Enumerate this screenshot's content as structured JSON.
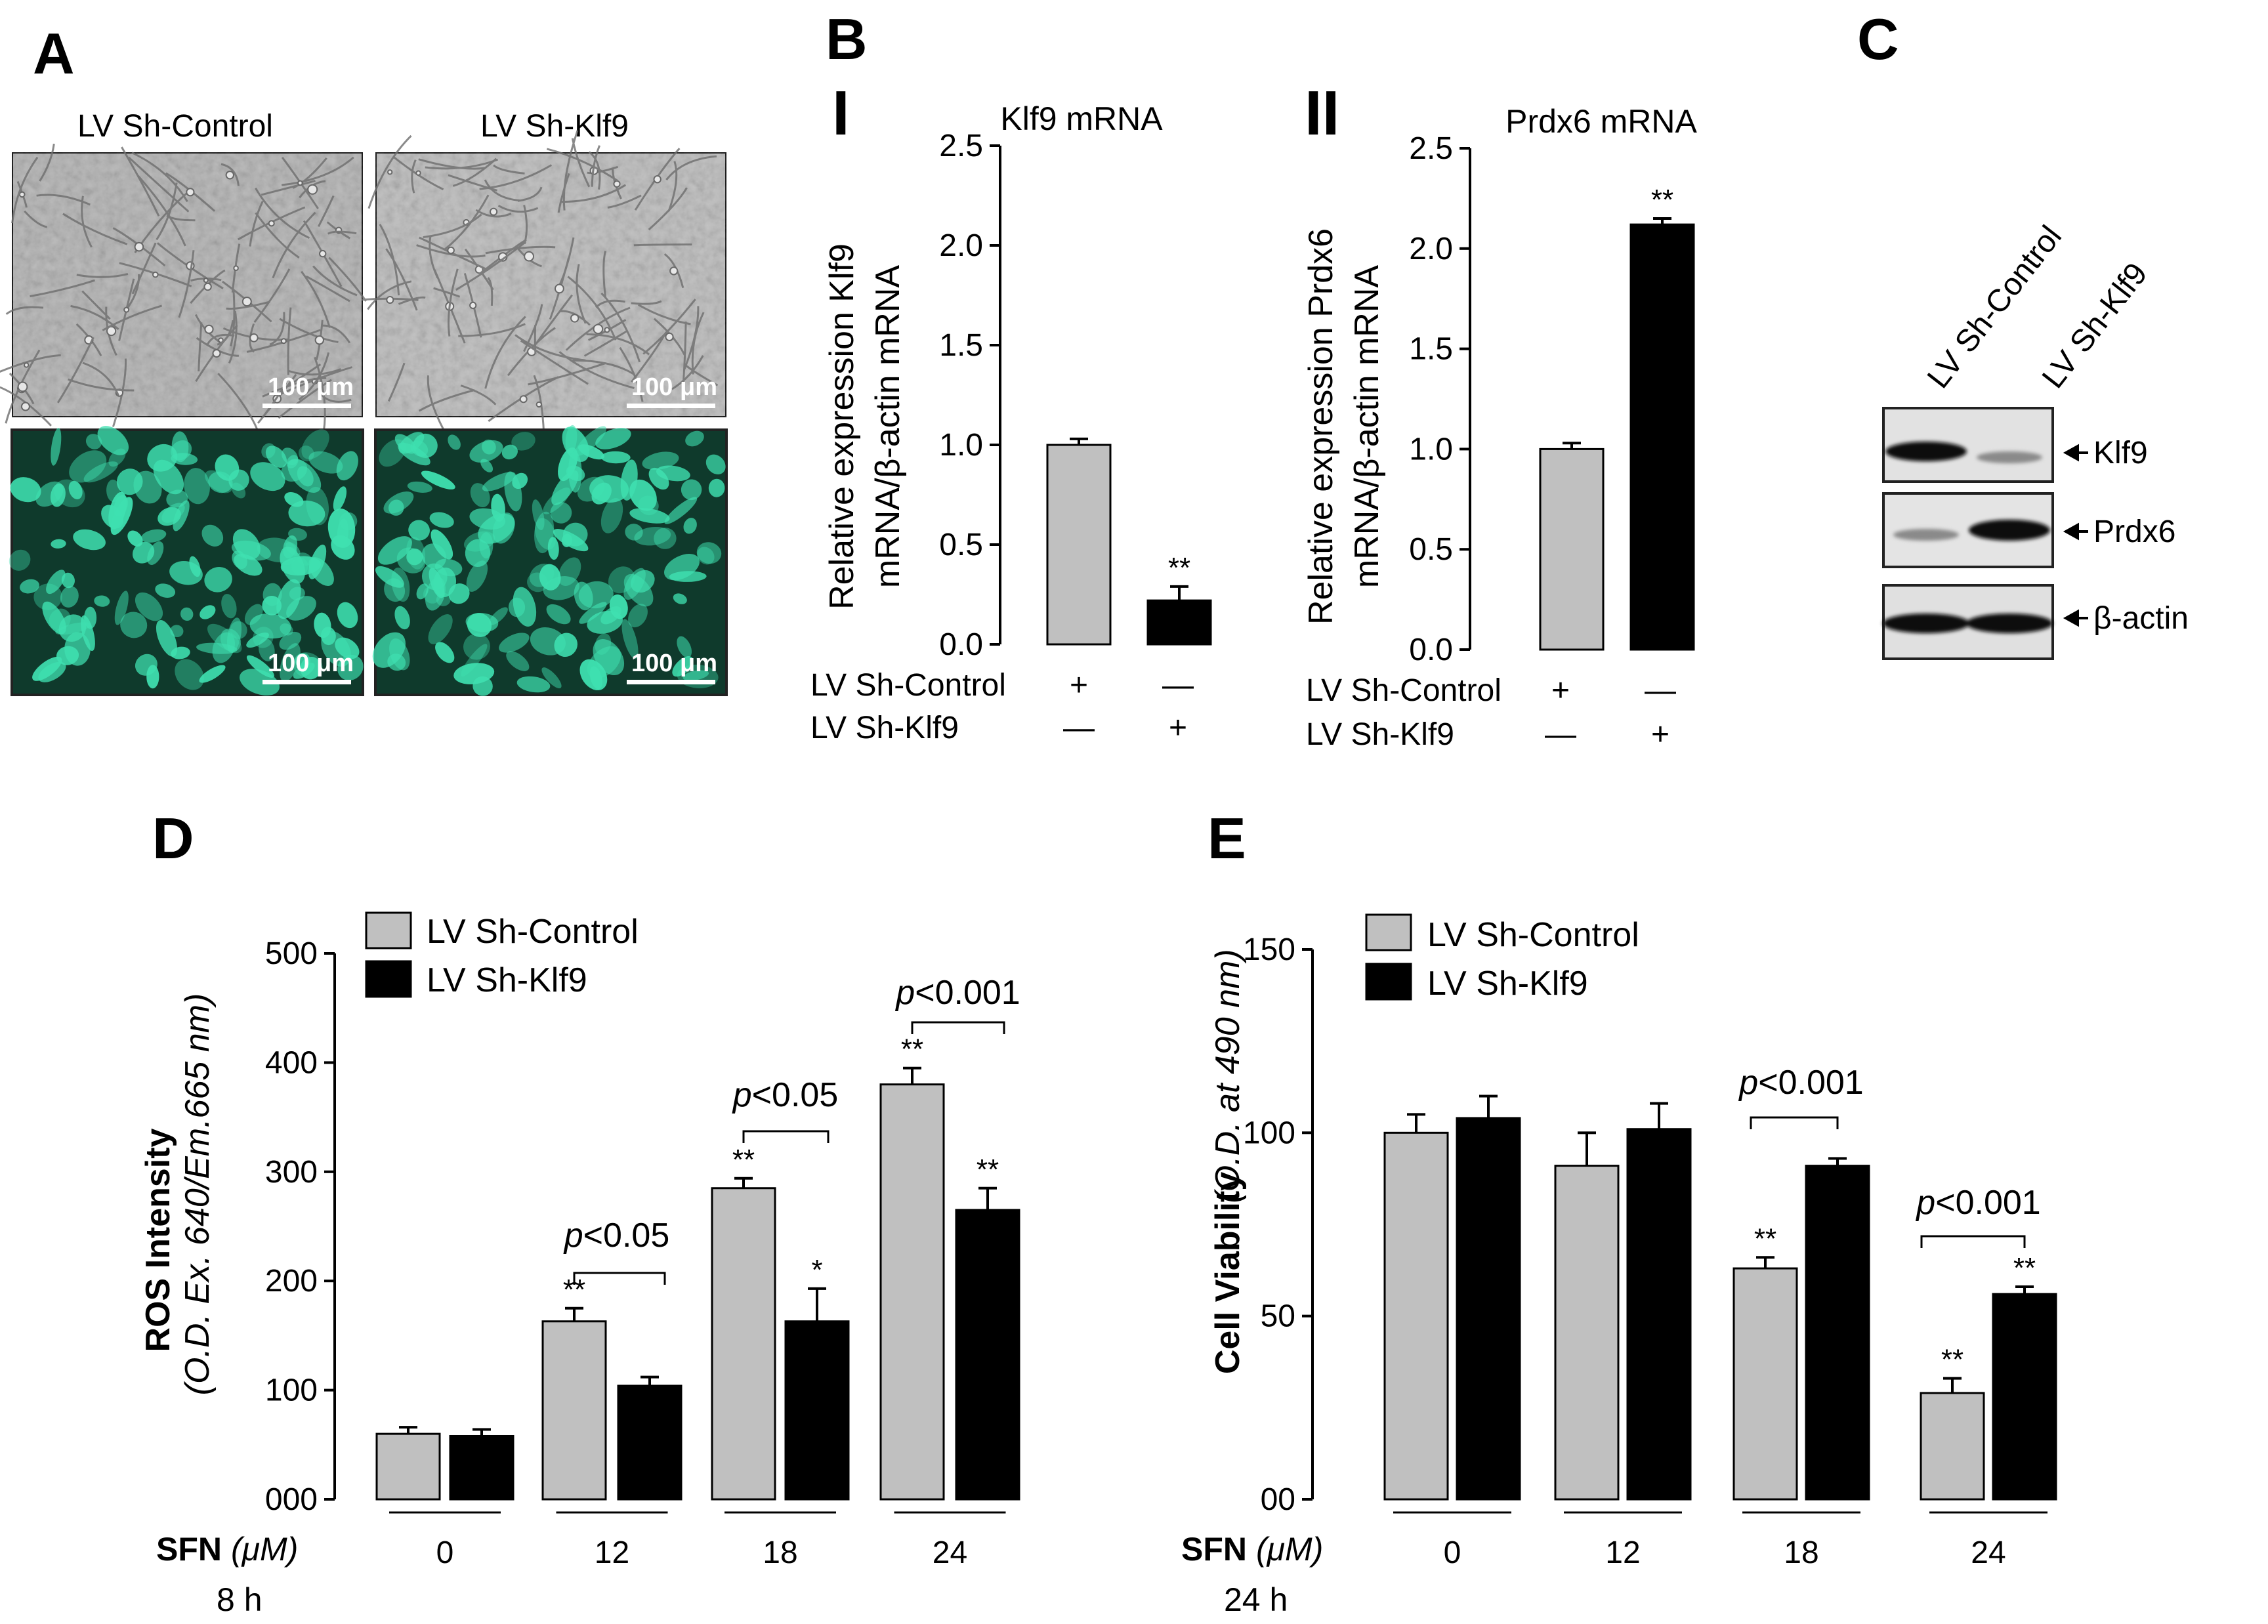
{
  "colors": {
    "control": "#c0c0c0",
    "klf9": "#000000",
    "phase_bg": "#bdbdbd",
    "fluor_bg": "#0f3a2c",
    "fluor_cell": "#3fe0b0"
  },
  "panel_labels": {
    "a": "A",
    "b": "B",
    "c": "C",
    "d": "D",
    "e": "E"
  },
  "panel_a": {
    "col1": "LV Sh-Control",
    "col2": "LV Sh-Klf9",
    "scale_label": "100 μm"
  },
  "panel_b": {
    "sub1": "I",
    "sub2": "II",
    "rows": [
      "LV Sh-Control",
      "LV Sh-Klf9"
    ],
    "signs": {
      "control": [
        "+",
        "—"
      ],
      "klf9": [
        "—",
        "+"
      ]
    }
  },
  "panel_c": {
    "lanes": [
      "LV Sh-Control",
      "LV Sh-Klf9"
    ],
    "bands": [
      "Klf9",
      "Prdx6",
      "β-actin"
    ]
  },
  "panel_d": {
    "sfn_bold": "SFN",
    "sfn_unit": "(μM)",
    "time": "8 h",
    "pvals": [
      "p<0.05",
      "p<0.05",
      "p<0.001"
    ]
  },
  "panel_e": {
    "sfn_bold": "SFN",
    "sfn_unit": "(μM)",
    "time": "24 h",
    "pvals": [
      "p<0.001",
      "p<0.001"
    ]
  },
  "chart_data": [
    {
      "type": "bar",
      "title": "Klf9 mRNA",
      "ylabel": "Relative expression Klf9 mRNA/β-actin mRNA",
      "ylim": [
        0,
        2.5
      ],
      "yticks": [
        "0.0",
        "0.5",
        "1.0",
        "1.5",
        "2.0",
        "2.5"
      ],
      "series": [
        {
          "name": "LV Sh-Control",
          "values": [
            1.0
          ],
          "errors": [
            0.03
          ],
          "stars": [
            ""
          ]
        },
        {
          "name": "LV Sh-Klf9",
          "values": [
            0.22
          ],
          "errors": [
            0.07
          ],
          "stars": [
            "**"
          ]
        }
      ]
    },
    {
      "type": "bar",
      "title": "Prdx6 mRNA",
      "ylabel": "Relative expression Prdx6 mRNA/β-actin mRNA",
      "ylim": [
        0,
        2.5
      ],
      "yticks": [
        "0.0",
        "0.5",
        "1.0",
        "1.5",
        "2.0",
        "2.5"
      ],
      "series": [
        {
          "name": "LV Sh-Control",
          "values": [
            1.0
          ],
          "errors": [
            0.03
          ],
          "stars": [
            ""
          ]
        },
        {
          "name": "LV Sh-Klf9",
          "values": [
            2.12
          ],
          "errors": [
            0.03
          ],
          "stars": [
            "**"
          ]
        }
      ]
    },
    {
      "type": "bar",
      "ylabel": "ROS Intensity",
      "ylabel2": "(O.D. Ex. 640/Em.665 nm)",
      "ylim": [
        0,
        500
      ],
      "yticks": [
        "000",
        "100",
        "200",
        "300",
        "400",
        "500"
      ],
      "categories": [
        "0",
        "12",
        "18",
        "24"
      ],
      "legend": "top-left",
      "series": [
        {
          "name": "LV Sh-Control",
          "values": [
            60,
            163,
            285,
            380
          ],
          "errors": [
            6,
            12,
            9,
            15
          ],
          "stars": [
            "",
            "**",
            "**",
            "**"
          ]
        },
        {
          "name": "LV Sh-Klf9",
          "values": [
            58,
            104,
            163,
            265
          ],
          "errors": [
            6,
            8,
            30,
            20
          ],
          "stars": [
            "",
            "",
            "*",
            "**"
          ]
        }
      ]
    },
    {
      "type": "bar",
      "ylabel": "Cell Viability",
      "ylabel2": "(O.D. at 490 nm)",
      "ylim": [
        0,
        150
      ],
      "yticks": [
        "00",
        "50",
        "100",
        "150"
      ],
      "categories": [
        "0",
        "12",
        "18",
        "24"
      ],
      "legend": "top-left",
      "series": [
        {
          "name": "LV Sh-Control",
          "values": [
            100,
            91,
            63,
            29
          ],
          "errors": [
            5,
            9,
            3,
            4
          ],
          "stars": [
            "",
            "",
            "**",
            "**"
          ]
        },
        {
          "name": "LV Sh-Klf9",
          "values": [
            104,
            101,
            91,
            56
          ],
          "errors": [
            6,
            7,
            2,
            2
          ],
          "stars": [
            "",
            "",
            "",
            "**"
          ]
        }
      ]
    }
  ]
}
